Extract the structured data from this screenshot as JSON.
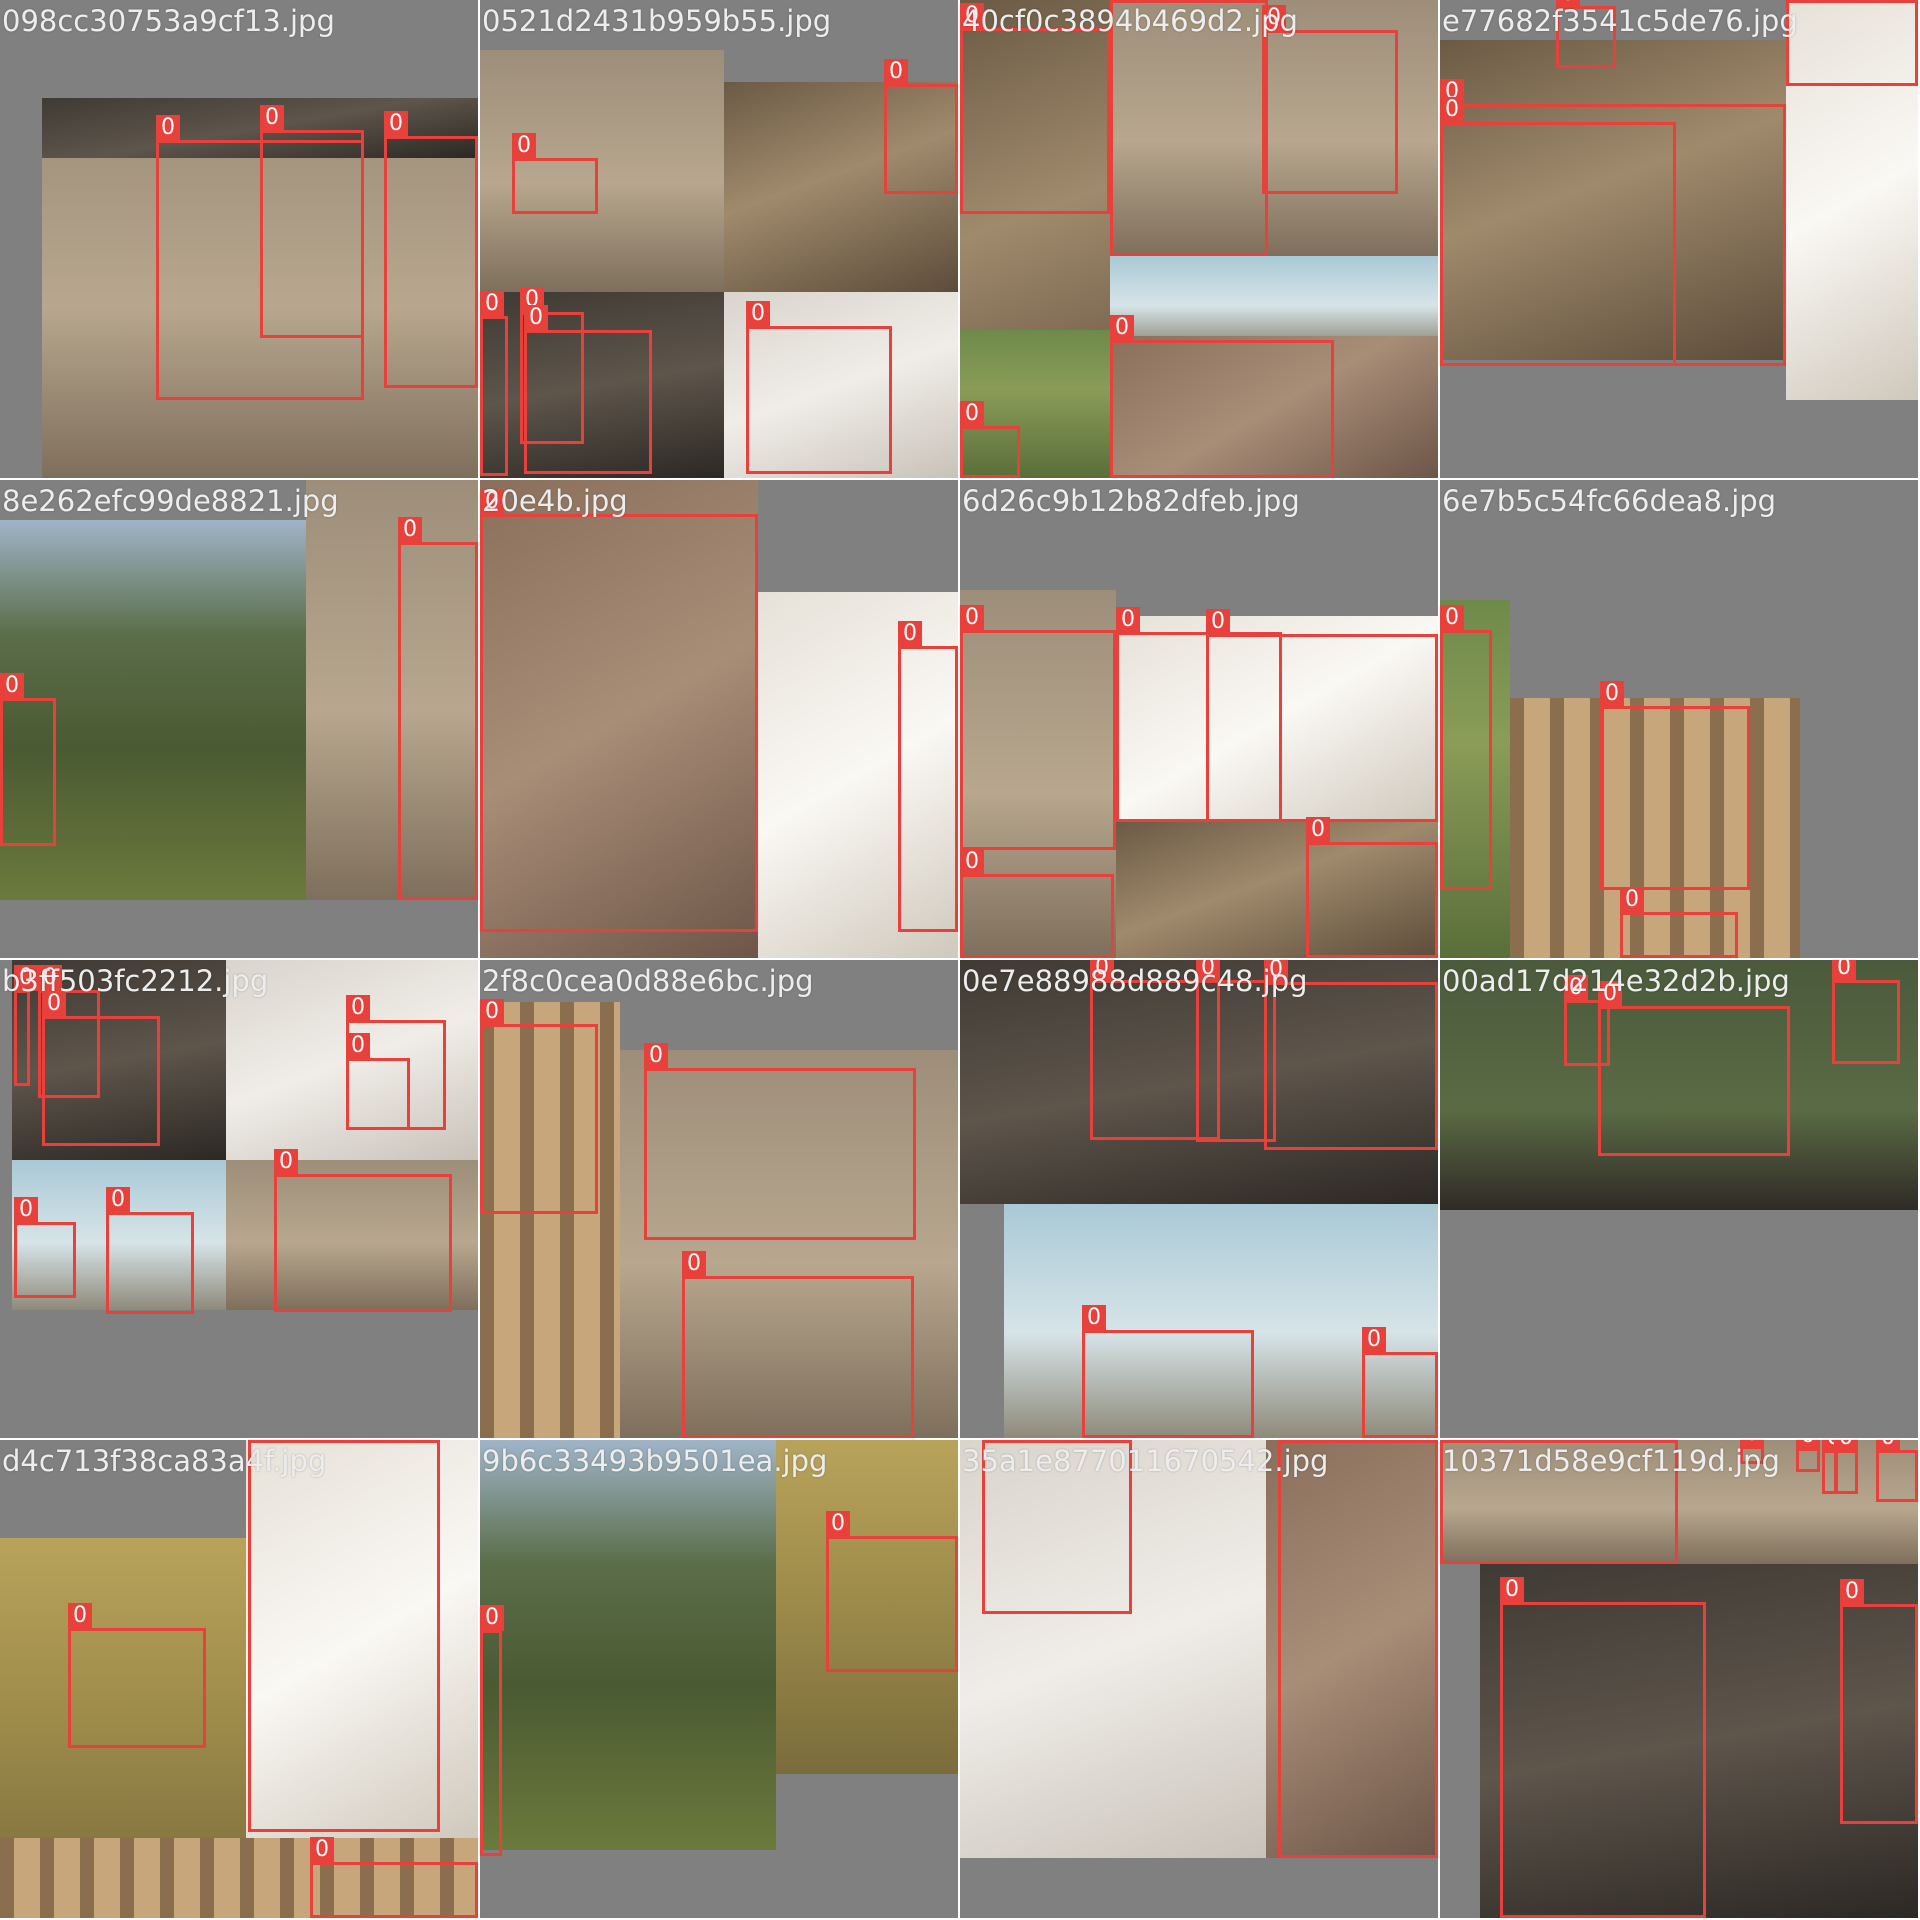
{
  "box_color": "#e8403a",
  "class_label": "0",
  "tiles": [
    {
      "filename": "098cc30753a9cf13.jpg"
    },
    {
      "filename": "0521d2431b959b55.jpg"
    },
    {
      "filename": "40cf0c3894b469d2.jpg"
    },
    {
      "filename": "e77682f3541c5de76.jpg"
    },
    {
      "filename": "8e262efc99de8821.jpg"
    },
    {
      "filename": "20e4b.jpg"
    },
    {
      "filename": "6d26c9b12b82dfeb.jpg"
    },
    {
      "filename": "6e7b5c54fc66dea8.jpg"
    },
    {
      "filename": "b3ff503fc2212.jpg"
    },
    {
      "filename": "2f8c0cea0d88e6bc.jpg"
    },
    {
      "filename": "0e7e88988d889c48.jpg"
    },
    {
      "filename": "00ad17d214e32d2b.jpg"
    },
    {
      "filename": "d4c713f38ca83a4f.jpg"
    },
    {
      "filename": "9b6c33493b9501ea.jpg"
    },
    {
      "filename": "35a1e877011670542.jpg"
    },
    {
      "filename": "10371d58e9cf119d.jpg"
    }
  ]
}
